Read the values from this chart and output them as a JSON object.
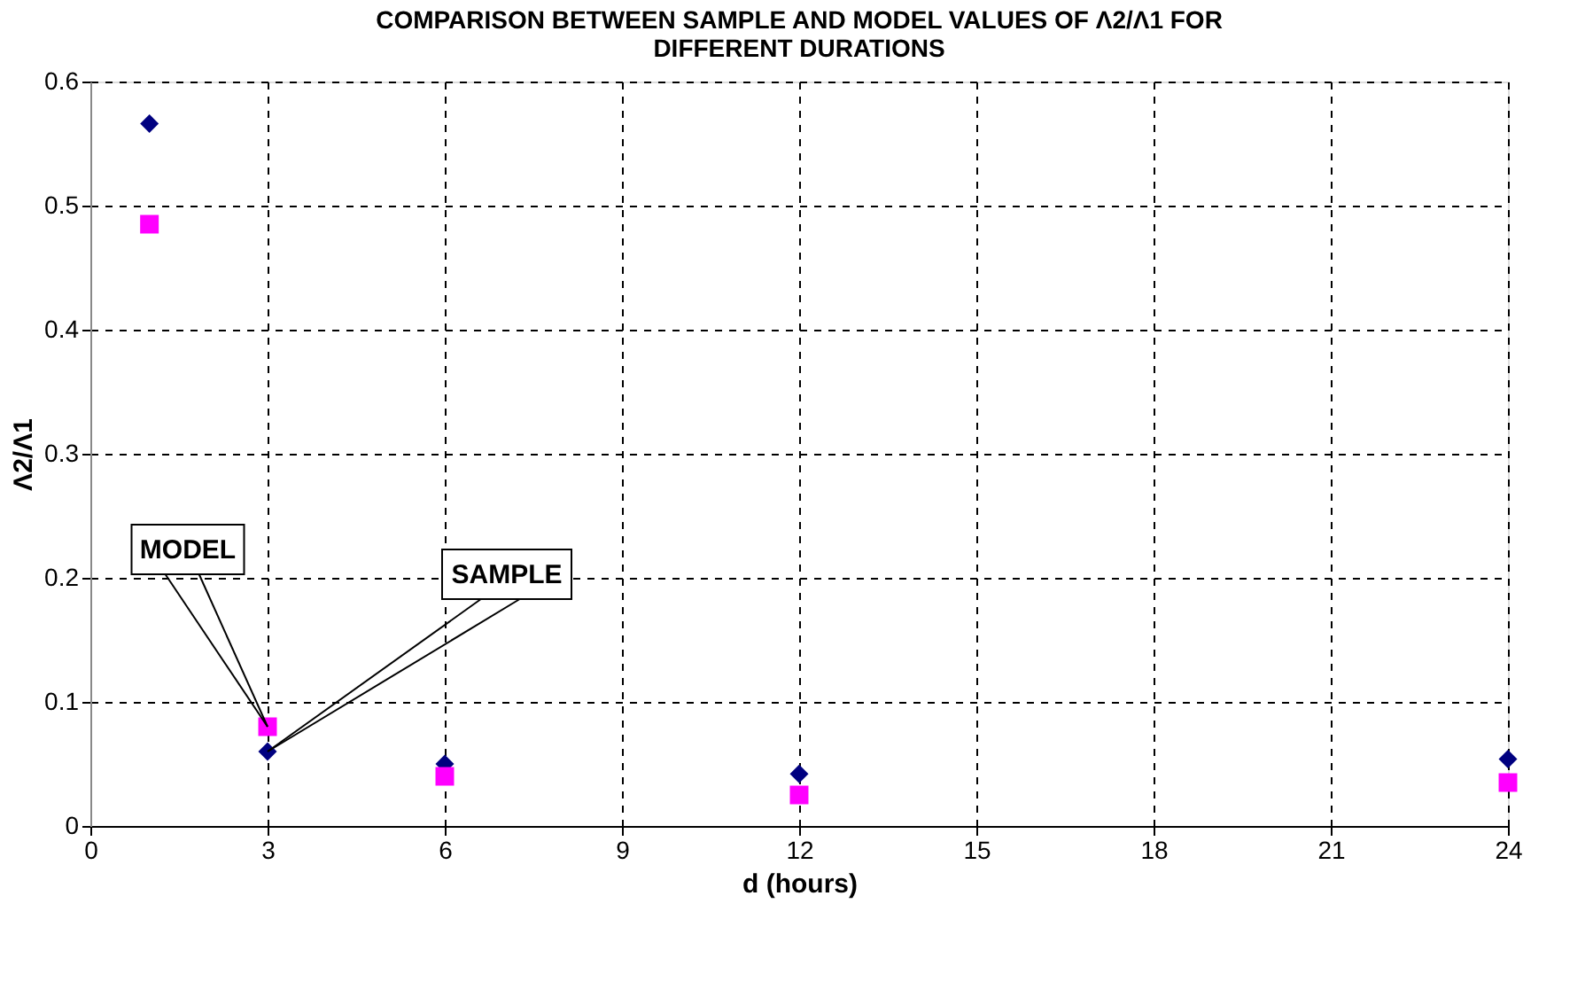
{
  "chart_data": {
    "type": "scatter",
    "title": [
      "COMPARISON BETWEEN SAMPLE AND MODEL VALUES OF Λ2/Λ1 FOR",
      "DIFFERENT DURATIONS"
    ],
    "xlabel": "d (hours)",
    "ylabel": "Λ2/Λ1",
    "x": [
      1,
      3,
      6,
      12,
      24
    ],
    "series": [
      {
        "color": "#000080",
        "marker": "diamond",
        "values": [
          0.566,
          0.06,
          0.05,
          0.042,
          0.054
        ]
      },
      {
        "color": "#ff00ff",
        "marker": "square",
        "values": [
          0.485,
          0.08,
          0.04,
          0.025,
          0.035
        ]
      }
    ],
    "annotations": [
      {
        "text": "MODEL",
        "x": 3,
        "y": 0.08
      },
      {
        "text": "SAMPLE",
        "x": 3,
        "y": 0.06
      }
    ],
    "xlim": [
      0,
      24
    ],
    "xticks": [
      0,
      3,
      6,
      9,
      12,
      15,
      18,
      21,
      24
    ],
    "ylim": [
      0,
      0.6
    ],
    "yticks": [
      0,
      0.1,
      0.2,
      0.3,
      0.4,
      0.5,
      0.6
    ],
    "grid": true,
    "legend": false
  }
}
